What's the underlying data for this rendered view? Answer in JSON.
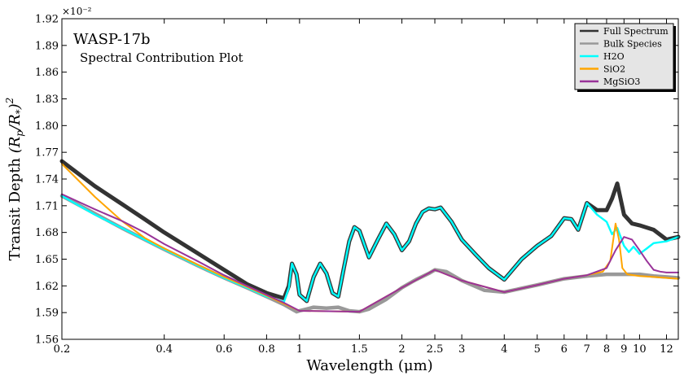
{
  "chart_data": {
    "type": "line",
    "title": "WASP-17b",
    "subtitle": "Spectral Contribution Plot",
    "xlabel": "Wavelength (μm)",
    "ylabel": "Transit Depth (R_p/R_*)^2",
    "ylabel_base": "Transit Depth ",
    "y_multiplier": "×10⁻²",
    "x_scale": "log",
    "xlim": [
      0.2,
      13
    ],
    "ylim": [
      1.56,
      1.92
    ],
    "x_ticks": [
      0.2,
      0.4,
      0.6,
      0.8,
      1,
      1.5,
      2,
      2.5,
      3,
      4,
      5,
      6,
      7,
      8,
      9,
      10,
      12
    ],
    "x_tick_labels": [
      "0.2",
      "0.4",
      "0.6",
      "0.8",
      "1",
      "1.5",
      "2",
      "2.5",
      "3",
      "4",
      "5",
      "6",
      "7",
      "8",
      "9",
      "10",
      "12"
    ],
    "y_ticks": [
      1.56,
      1.59,
      1.62,
      1.65,
      1.68,
      1.71,
      1.74,
      1.77,
      1.8,
      1.83,
      1.86,
      1.89,
      1.92
    ],
    "y_tick_labels": [
      "1.56",
      "1.59",
      "1.62",
      "1.65",
      "1.68",
      "1.71",
      "1.74",
      "1.77",
      "1.80",
      "1.83",
      "1.86",
      "1.89",
      "1.92"
    ],
    "grid": false,
    "legend_position": "top-right",
    "series": [
      {
        "name": "Bulk Species",
        "color": "#999999",
        "x": [
          0.2,
          0.3,
          0.4,
          0.5,
          0.6,
          0.7,
          0.8,
          0.9,
          0.98,
          1.0,
          1.05,
          1.1,
          1.2,
          1.3,
          1.4,
          1.5,
          1.6,
          1.8,
          2.0,
          2.2,
          2.4,
          2.5,
          2.7,
          3.0,
          3.5,
          4.0,
          5.0,
          6.0,
          7.0,
          8.0,
          9.0,
          10.0,
          11.0,
          12.0,
          13.0
        ],
        "y": [
          1.721,
          1.685,
          1.661,
          1.643,
          1.629,
          1.618,
          1.608,
          1.599,
          1.591,
          1.592,
          1.594,
          1.596,
          1.595,
          1.596,
          1.592,
          1.591,
          1.594,
          1.605,
          1.618,
          1.627,
          1.634,
          1.638,
          1.636,
          1.626,
          1.615,
          1.613,
          1.621,
          1.628,
          1.631,
          1.633,
          1.633,
          1.633,
          1.631,
          1.63,
          1.629
        ]
      },
      {
        "name": "Full Spectrum",
        "color": "#333333",
        "x": [
          0.2,
          0.25,
          0.3,
          0.35,
          0.4,
          0.5,
          0.6,
          0.7,
          0.8,
          0.9,
          0.93,
          0.95,
          0.98,
          1.0,
          1.05,
          1.1,
          1.15,
          1.2,
          1.25,
          1.3,
          1.35,
          1.4,
          1.45,
          1.5,
          1.6,
          1.7,
          1.8,
          1.9,
          2.0,
          2.1,
          2.2,
          2.3,
          2.4,
          2.5,
          2.6,
          2.8,
          3.0,
          3.3,
          3.6,
          4.0,
          4.5,
          5.0,
          5.5,
          6.0,
          6.3,
          6.6,
          7.0,
          7.5,
          8.0,
          8.3,
          8.6,
          9.0,
          9.5,
          10.0,
          11.0,
          12.0,
          13.0
        ],
        "y": [
          1.76,
          1.732,
          1.712,
          1.695,
          1.68,
          1.657,
          1.638,
          1.622,
          1.612,
          1.606,
          1.62,
          1.645,
          1.633,
          1.61,
          1.603,
          1.63,
          1.645,
          1.634,
          1.612,
          1.608,
          1.64,
          1.67,
          1.686,
          1.682,
          1.652,
          1.672,
          1.69,
          1.678,
          1.66,
          1.67,
          1.69,
          1.703,
          1.707,
          1.706,
          1.708,
          1.692,
          1.672,
          1.655,
          1.64,
          1.627,
          1.65,
          1.665,
          1.676,
          1.696,
          1.695,
          1.683,
          1.713,
          1.705,
          1.705,
          1.718,
          1.735,
          1.7,
          1.69,
          1.688,
          1.683,
          1.672,
          1.675
        ]
      },
      {
        "name": "H2O",
        "color": "#00ffff",
        "x": [
          0.2,
          0.25,
          0.3,
          0.35,
          0.4,
          0.5,
          0.6,
          0.7,
          0.8,
          0.9,
          0.93,
          0.95,
          0.98,
          1.0,
          1.05,
          1.1,
          1.15,
          1.2,
          1.25,
          1.3,
          1.35,
          1.4,
          1.45,
          1.5,
          1.6,
          1.7,
          1.8,
          1.9,
          2.0,
          2.1,
          2.2,
          2.3,
          2.4,
          2.5,
          2.6,
          2.8,
          3.0,
          3.3,
          3.6,
          4.0,
          4.5,
          5.0,
          5.5,
          6.0,
          6.3,
          6.6,
          7.0,
          7.5,
          8.0,
          8.3,
          8.6,
          9.0,
          9.3,
          9.6,
          10.0,
          10.5,
          11.0,
          12.0,
          13.0
        ],
        "y": [
          1.721,
          1.7,
          1.685,
          1.672,
          1.661,
          1.643,
          1.629,
          1.618,
          1.608,
          1.602,
          1.618,
          1.645,
          1.633,
          1.61,
          1.603,
          1.63,
          1.645,
          1.634,
          1.612,
          1.608,
          1.64,
          1.67,
          1.686,
          1.682,
          1.652,
          1.672,
          1.69,
          1.678,
          1.66,
          1.67,
          1.69,
          1.703,
          1.707,
          1.706,
          1.708,
          1.692,
          1.672,
          1.655,
          1.64,
          1.627,
          1.65,
          1.665,
          1.676,
          1.696,
          1.695,
          1.683,
          1.713,
          1.7,
          1.692,
          1.678,
          1.685,
          1.665,
          1.658,
          1.664,
          1.656,
          1.662,
          1.668,
          1.67,
          1.675
        ]
      },
      {
        "name": "SiO2",
        "color": "#ffa500",
        "x": [
          0.2,
          0.25,
          0.3,
          0.35,
          0.4,
          0.5,
          0.6,
          0.7,
          0.8,
          0.9,
          1.0,
          1.5,
          2.0,
          2.5,
          3.0,
          4.0,
          5.0,
          6.0,
          7.0,
          7.8,
          8.2,
          8.5,
          8.7,
          8.9,
          9.2,
          9.6,
          10.0,
          11.0,
          12.0,
          13.0
        ],
        "y": [
          1.757,
          1.72,
          1.693,
          1.674,
          1.662,
          1.644,
          1.63,
          1.619,
          1.609,
          1.6,
          1.592,
          1.591,
          1.618,
          1.638,
          1.626,
          1.613,
          1.621,
          1.628,
          1.632,
          1.636,
          1.648,
          1.69,
          1.672,
          1.64,
          1.633,
          1.632,
          1.631,
          1.63,
          1.629,
          1.628
        ]
      },
      {
        "name": "MgSiO3",
        "color": "#993399",
        "x": [
          0.2,
          0.25,
          0.3,
          0.35,
          0.4,
          0.5,
          0.6,
          0.7,
          0.8,
          0.9,
          1.0,
          1.5,
          2.0,
          2.5,
          3.0,
          4.0,
          5.0,
          6.0,
          7.0,
          8.0,
          8.5,
          9.0,
          9.5,
          10.0,
          10.5,
          11.0,
          11.5,
          12.0,
          13.0
        ],
        "y": [
          1.723,
          1.706,
          1.693,
          1.68,
          1.667,
          1.648,
          1.632,
          1.62,
          1.61,
          1.601,
          1.592,
          1.591,
          1.618,
          1.638,
          1.626,
          1.613,
          1.621,
          1.628,
          1.632,
          1.64,
          1.66,
          1.675,
          1.672,
          1.66,
          1.648,
          1.638,
          1.636,
          1.635,
          1.635
        ]
      }
    ],
    "legend": [
      {
        "label": "Full Spectrum",
        "color": "#333333"
      },
      {
        "label": "Bulk Species",
        "color": "#999999"
      },
      {
        "label": "H2O",
        "color": "#00ffff"
      },
      {
        "label": "SiO2",
        "color": "#ffa500"
      },
      {
        "label": "MgSiO3",
        "color": "#993399"
      }
    ]
  }
}
